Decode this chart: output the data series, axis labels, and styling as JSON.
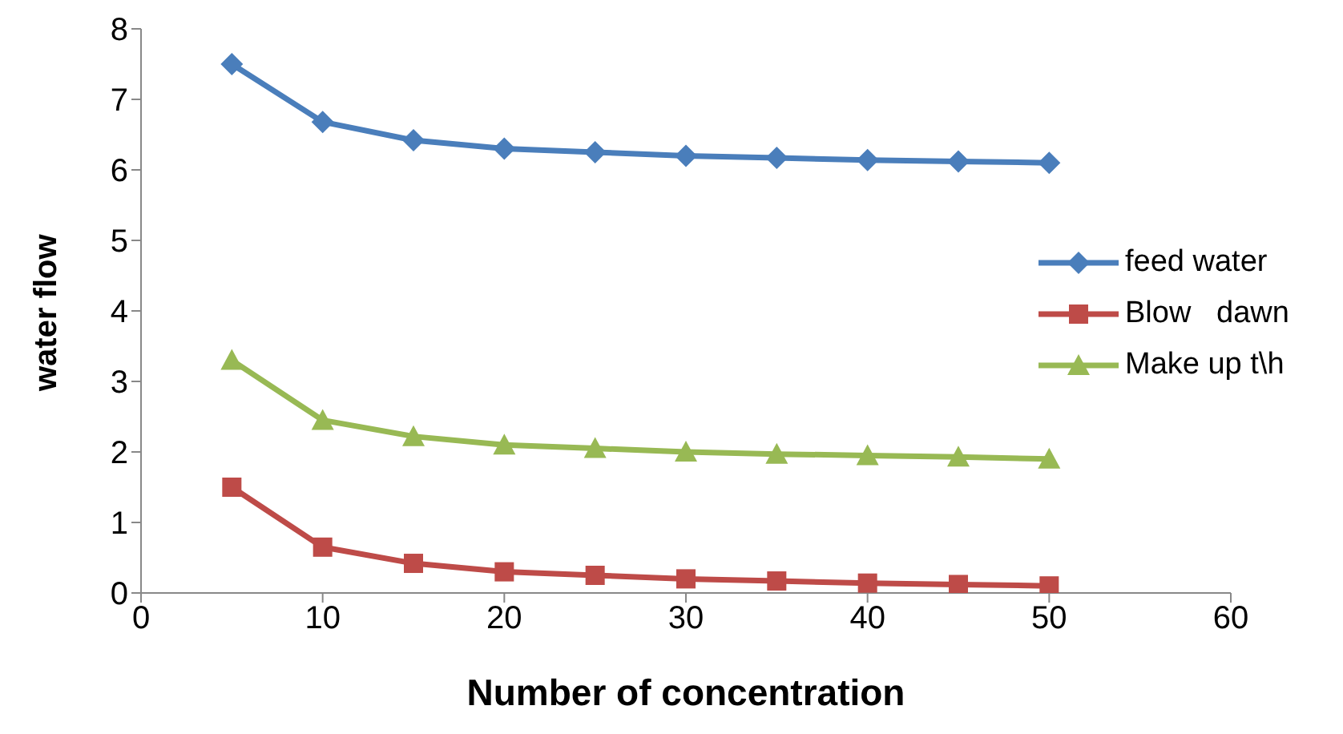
{
  "chart_data": {
    "type": "line",
    "xlabel": "Number of concentration",
    "ylabel": "water flow",
    "x": [
      5,
      10,
      15,
      20,
      25,
      30,
      35,
      40,
      45,
      50
    ],
    "series": [
      {
        "name": "feed water",
        "color": "#4a7ebb",
        "marker": "diamond",
        "values": [
          7.5,
          6.68,
          6.42,
          6.3,
          6.25,
          6.2,
          6.17,
          6.14,
          6.12,
          6.1
        ]
      },
      {
        "name": "Blow   dawn",
        "color": "#be4b48",
        "marker": "square",
        "values": [
          1.5,
          0.65,
          0.42,
          0.3,
          0.25,
          0.2,
          0.17,
          0.14,
          0.12,
          0.1
        ]
      },
      {
        "name": "Make up t\\h",
        "color": "#98b954",
        "marker": "triangle",
        "values": [
          3.3,
          2.45,
          2.22,
          2.1,
          2.05,
          2.0,
          1.97,
          1.95,
          1.93,
          1.9
        ]
      }
    ],
    "xlim": [
      0,
      60
    ],
    "xticks": [
      0,
      10,
      20,
      30,
      40,
      50,
      60
    ],
    "ylim": [
      0,
      8
    ],
    "yticks": [
      0,
      1,
      2,
      3,
      4,
      5,
      6,
      7,
      8
    ],
    "grid": false,
    "legend": "right",
    "line_style": "solid"
  }
}
